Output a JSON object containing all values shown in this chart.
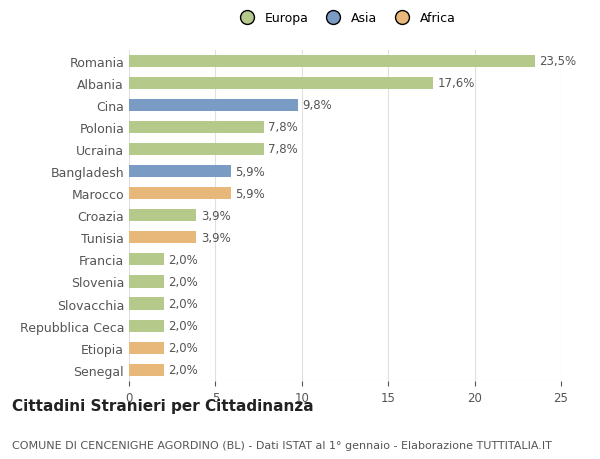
{
  "categories": [
    "Senegal",
    "Etiopia",
    "Repubblica Ceca",
    "Slovacchia",
    "Slovenia",
    "Francia",
    "Tunisia",
    "Croazia",
    "Marocco",
    "Bangladesh",
    "Ucraina",
    "Polonia",
    "Cina",
    "Albania",
    "Romania"
  ],
  "values": [
    2.0,
    2.0,
    2.0,
    2.0,
    2.0,
    2.0,
    3.9,
    3.9,
    5.9,
    5.9,
    7.8,
    7.8,
    9.8,
    17.6,
    23.5
  ],
  "labels": [
    "2,0%",
    "2,0%",
    "2,0%",
    "2,0%",
    "2,0%",
    "2,0%",
    "3,9%",
    "3,9%",
    "5,9%",
    "5,9%",
    "7,8%",
    "7,8%",
    "9,8%",
    "17,6%",
    "23,5%"
  ],
  "colors": [
    "#e8b87a",
    "#e8b87a",
    "#b5c98a",
    "#b5c98a",
    "#b5c98a",
    "#b5c98a",
    "#e8b87a",
    "#b5c98a",
    "#e8b87a",
    "#7a9cc4",
    "#b5c98a",
    "#b5c98a",
    "#7a9cc4",
    "#b5c98a",
    "#b5c98a"
  ],
  "legend_labels": [
    "Europa",
    "Asia",
    "Africa"
  ],
  "legend_colors": [
    "#b5c98a",
    "#7a9cc4",
    "#e8b87a"
  ],
  "title": "Cittadini Stranieri per Cittadinanza",
  "subtitle": "COMUNE DI CENCENIGHE AGORDINO (BL) - Dati ISTAT al 1° gennaio - Elaborazione TUTTITALIA.IT",
  "xlim": [
    0,
    25
  ],
  "xticks": [
    0,
    5,
    10,
    15,
    20,
    25
  ],
  "background_color": "#ffffff",
  "grid_color": "#e0e0e0",
  "bar_height": 0.55,
  "label_fontsize": 8.5,
  "tick_fontsize": 8.5,
  "ytick_fontsize": 9,
  "title_fontsize": 11,
  "subtitle_fontsize": 8,
  "legend_fontsize": 9
}
